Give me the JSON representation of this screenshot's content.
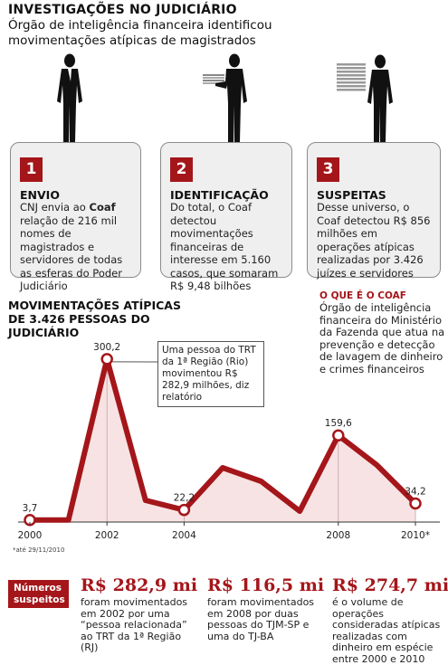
{
  "header": {
    "title": "INVESTIGAÇÕES NO JUDICIÁRIO",
    "subtitle": "Órgão de inteligência financeira identificou movimentações atípicas de magistrados"
  },
  "steps": [
    {
      "number": "1",
      "heading": "ENVIO",
      "text_a": "CNJ envia ao ",
      "text_bold": "Coaf",
      "text_b": " relação de 216 mil nomes de magistrados e servidores de todas as esferas do Poder Judiciário"
    },
    {
      "number": "2",
      "heading": "IDENTIFICAÇÃO",
      "text": "Do total, o Coaf detectou movimentações financeiras de interesse em 5.160 casos, que somaram R$ 9,48 bilhões"
    },
    {
      "number": "3",
      "heading": "SUSPEITAS",
      "text": "Desse universo, o Coaf detectou R$ 856 milhões em operações atípicas realizadas por 3.426 juízes e servidores"
    }
  ],
  "coaf_box": {
    "heading": "O QUE É O COAF",
    "text": "Órgão de inteligência financeira do Ministério da Fazenda que atua na prevenção e detecção de lavagem de dinheiro e crimes financeiros"
  },
  "chart_data": {
    "type": "area",
    "title": "MOVIMENTAÇÕES ATÍPICAS DE 3.426 PESSOAS DO JUDICIÁRIO",
    "x": [
      2000,
      2001,
      2002,
      2003,
      2004,
      2005,
      2006,
      2007,
      2008,
      2009,
      2010
    ],
    "values": [
      3.7,
      3.7,
      300.2,
      40,
      22.2,
      100,
      75,
      20,
      159.6,
      105,
      34.2
    ],
    "labeled_points": [
      {
        "x": 2000,
        "label": "3,7"
      },
      {
        "x": 2002,
        "label": "300,2"
      },
      {
        "x": 2004,
        "label": "22,2"
      },
      {
        "x": 2008,
        "label": "159,6"
      },
      {
        "x": 2010,
        "label": "34,2"
      }
    ],
    "x_tick_labels": [
      {
        "x": 2000,
        "label": "2000"
      },
      {
        "x": 2002,
        "label": "2002"
      },
      {
        "x": 2004,
        "label": "2004"
      },
      {
        "x": 2008,
        "label": "2008"
      },
      {
        "x": 2010,
        "label": "2010*"
      }
    ],
    "xlim": [
      2000,
      2010
    ],
    "ylim": [
      0,
      320
    ],
    "line_color": "#a4161a",
    "fill_color": "#f7e3e3",
    "footnote": "*até 29/11/2010",
    "annotation": "Uma pessoa do TRT da 1ª Região (Rio) movimentou R$ 282,9 milhões, diz relatório"
  },
  "facts": {
    "badge": "Números suspeitos",
    "items": [
      {
        "value": "R$ 282,9 mi",
        "text": "foram movimentados em 2002 por uma “pessoa relacionada” ao TRT da 1ª Região (RJ)"
      },
      {
        "value": "R$ 116,5 mi",
        "text": "foram movimentados em 2008 por duas pessoas do TJM-SP e uma do TJ-BA"
      },
      {
        "value": "R$ 274,7 mi",
        "text": "é o volume de operações consideradas atípicas realizadas com dinheiro em espécie entre 2000 e 2010"
      }
    ]
  },
  "colors": {
    "accent": "#a4161a",
    "box_bg": "#efefef"
  }
}
